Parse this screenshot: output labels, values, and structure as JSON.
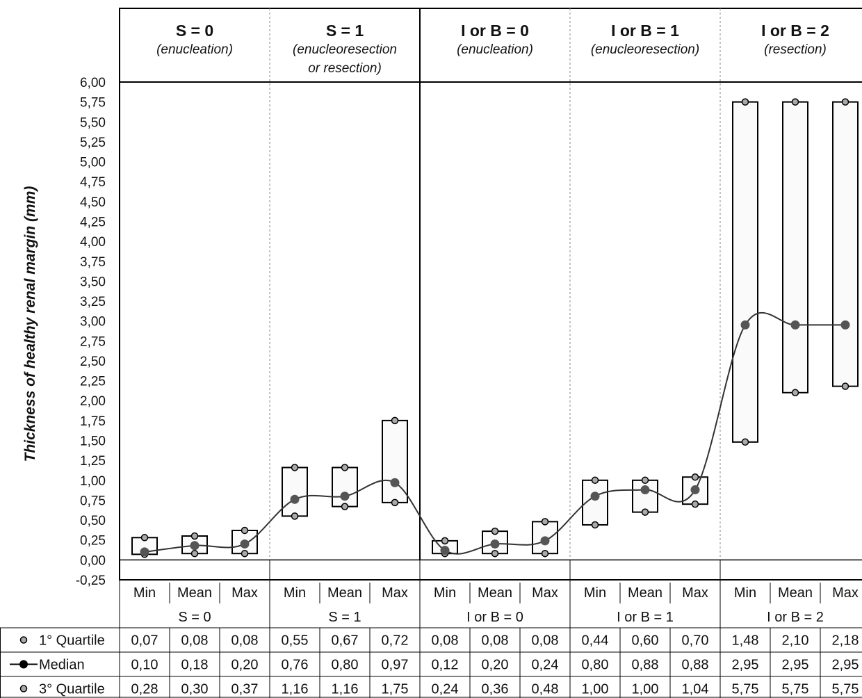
{
  "chart_data": {
    "type": "table",
    "ylabel": "Thickness of healthy renal margin (mm)",
    "ylim": [
      -0.25,
      6.0
    ],
    "y_ticks": [
      "6,00",
      "5,75",
      "5,50",
      "5,25",
      "5,00",
      "4,75",
      "4,50",
      "4,25",
      "4,00",
      "3,75",
      "3,50",
      "3,25",
      "3,00",
      "2,75",
      "2,50",
      "2,25",
      "2,00",
      "1,75",
      "1,50",
      "1,25",
      "1,00",
      "0,75",
      "0,50",
      "0,25",
      "0,00",
      "-0,25"
    ],
    "groups": [
      {
        "main": "S = 0",
        "sub": [
          "(enucleation)"
        ],
        "label": "S = 0"
      },
      {
        "main": "S = 1",
        "sub": [
          "(enucleoresection",
          "or resection)"
        ],
        "label": "S = 1"
      },
      {
        "main": "I or B = 0",
        "sub": [
          "(enucleation)"
        ],
        "label": "I or B = 0"
      },
      {
        "main": "I or B = 1",
        "sub": [
          "(enucleoresection)"
        ],
        "label": "I or B = 1"
      },
      {
        "main": "I or B = 2",
        "sub": [
          "(resection)"
        ],
        "label": "I or B = 2"
      }
    ],
    "categories": [
      "Min",
      "Mean",
      "Max"
    ],
    "series": [
      {
        "name": "1° Quartile",
        "values": [
          [
            0.07,
            0.08,
            0.08
          ],
          [
            0.55,
            0.67,
            0.72
          ],
          [
            0.08,
            0.08,
            0.08
          ],
          [
            0.44,
            0.6,
            0.7
          ],
          [
            1.48,
            2.1,
            2.18
          ]
        ],
        "labels": [
          [
            "0,07",
            "0,08",
            "0,08"
          ],
          [
            "0,55",
            "0,67",
            "0,72"
          ],
          [
            "0,08",
            "0,08",
            "0,08"
          ],
          [
            "0,44",
            "0,60",
            "0,70"
          ],
          [
            "1,48",
            "2,10",
            "2,18"
          ]
        ]
      },
      {
        "name": "Median",
        "values": [
          [
            0.1,
            0.18,
            0.2
          ],
          [
            0.76,
            0.8,
            0.97
          ],
          [
            0.12,
            0.2,
            0.24
          ],
          [
            0.8,
            0.88,
            0.88
          ],
          [
            2.95,
            2.95,
            2.95
          ]
        ],
        "labels": [
          [
            "0,10",
            "0,18",
            "0,20"
          ],
          [
            "0,76",
            "0,80",
            "0,97"
          ],
          [
            "0,12",
            "0,20",
            "0,24"
          ],
          [
            "0,80",
            "0,88",
            "0,88"
          ],
          [
            "2,95",
            "2,95",
            "2,95"
          ]
        ]
      },
      {
        "name": "3° Quartile",
        "values": [
          [
            0.28,
            0.3,
            0.37
          ],
          [
            1.16,
            1.16,
            1.75
          ],
          [
            0.24,
            0.36,
            0.48
          ],
          [
            1.0,
            1.0,
            1.04
          ],
          [
            5.75,
            5.75,
            5.75
          ]
        ],
        "labels": [
          [
            "0,28",
            "0,30",
            "0,37"
          ],
          [
            "1,16",
            "1,16",
            "1,75"
          ],
          [
            "0,24",
            "0,36",
            "0,48"
          ],
          [
            "1,00",
            "1,00",
            "1,04"
          ],
          [
            "5,75",
            "5,75",
            "5,75"
          ]
        ]
      }
    ],
    "colors": {
      "quartile_marker": "#aaaaaa",
      "median_marker": "#555555",
      "median_line": "#333333",
      "box_fill": "#fafafa"
    }
  }
}
